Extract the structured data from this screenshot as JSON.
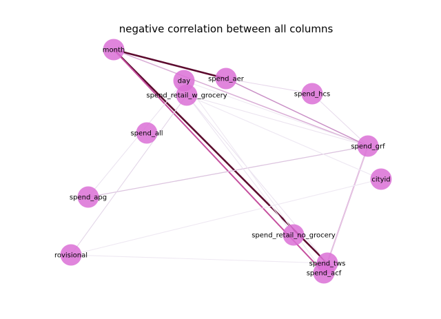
{
  "title": "negative correlation between all columns",
  "node_color": "#da70d6",
  "nodes": [
    {
      "id": "month",
      "label": "month"
    },
    {
      "id": "day",
      "label": "day"
    },
    {
      "id": "spend_aer",
      "label": "spend_aer"
    },
    {
      "id": "spend_retail_w_grocery",
      "label": "spend_retail_w_grocery"
    },
    {
      "id": "spend_hcs",
      "label": "spend_hcs"
    },
    {
      "id": "spend_all",
      "label": "spend_all"
    },
    {
      "id": "spend_grf",
      "label": "spend_grf"
    },
    {
      "id": "cityid",
      "label": "cityid"
    },
    {
      "id": "spend_apg",
      "label": "spend_apg"
    },
    {
      "id": "spend_retail_no_grocery",
      "label": "spend_retail_no_grocery"
    },
    {
      "id": "rovisional",
      "label": "rovisional"
    },
    {
      "id": "spend_tws",
      "label": "spend_tws"
    },
    {
      "id": "spend_acf",
      "label": "spend_acf"
    }
  ],
  "edges": [
    {
      "source": "month",
      "target": "spend_aer",
      "color": "#5c0a2e"
    },
    {
      "source": "month",
      "target": "spend_tws",
      "color": "#5c0a2e"
    },
    {
      "source": "month",
      "target": "spend_acf",
      "color": "#c54f9e"
    },
    {
      "source": "month",
      "target": "spend_grf",
      "color": "#d9aed6"
    },
    {
      "source": "spend_aer",
      "target": "spend_grf",
      "color": "#c98fc6"
    },
    {
      "source": "spend_aer",
      "target": "spend_hcs",
      "color": "#e6d6ea"
    },
    {
      "source": "spend_grf",
      "target": "spend_acf",
      "color": "#d2a6d2"
    },
    {
      "source": "spend_grf",
      "target": "spend_tws",
      "color": "#e6c3e3"
    },
    {
      "source": "spend_grf",
      "target": "spend_apg",
      "color": "#dcc4df"
    },
    {
      "source": "spend_hcs",
      "target": "spend_grf",
      "color": "#e8dcec"
    },
    {
      "source": "spend_retail_w_grocery",
      "target": "rovisional",
      "color": "#e3d6e8"
    },
    {
      "source": "spend_retail_w_grocery",
      "target": "spend_tws",
      "color": "#eae2ef"
    },
    {
      "source": "spend_retail_w_grocery",
      "target": "spend_retail_no_grocery",
      "color": "#ece5f1"
    },
    {
      "source": "spend_retail_w_grocery",
      "target": "cityid",
      "color": "#ede7f2"
    },
    {
      "source": "spend_retail_w_grocery",
      "target": "spend_grf",
      "color": "#ebe3ef"
    },
    {
      "source": "day",
      "target": "spend_apg",
      "color": "#ebe4f0"
    },
    {
      "source": "day",
      "target": "spend_acf",
      "color": "#eee8f2"
    },
    {
      "source": "day",
      "target": "spend_grf",
      "color": "#efeaf3"
    },
    {
      "source": "rovisional",
      "target": "cityid",
      "color": "#eee8f2"
    },
    {
      "source": "rovisional",
      "target": "spend_tws",
      "color": "#eee8f2"
    }
  ]
}
